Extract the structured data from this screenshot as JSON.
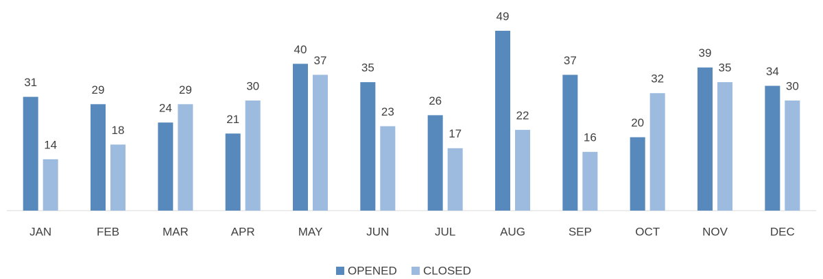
{
  "chart_data": {
    "type": "bar",
    "categories": [
      "JAN",
      "FEB",
      "MAR",
      "APR",
      "MAY",
      "JUN",
      "JUL",
      "AUG",
      "SEP",
      "OCT",
      "NOV",
      "DEC"
    ],
    "series": [
      {
        "name": "OPENED",
        "color": "#5789bd",
        "values": [
          31,
          29,
          24,
          21,
          40,
          35,
          26,
          49,
          37,
          20,
          39,
          34
        ]
      },
      {
        "name": "CLOSED",
        "color": "#9cbbdf",
        "values": [
          14,
          18,
          29,
          30,
          37,
          23,
          17,
          22,
          16,
          32,
          35,
          30
        ]
      }
    ],
    "legend": "bottom"
  }
}
